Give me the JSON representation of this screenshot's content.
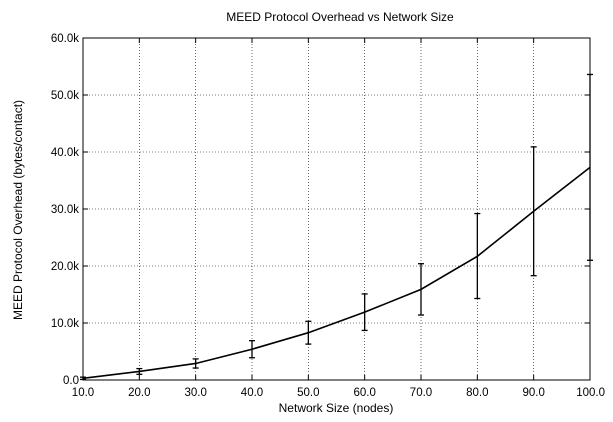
{
  "chart_data": {
    "type": "line",
    "title": "MEED Protocol Overhead vs Network Size",
    "xlabel": "Network Size (nodes)",
    "ylabel": "MEED Protocol Overhead (bytes/contact)",
    "xlim": [
      10,
      100
    ],
    "ylim": [
      0,
      60000
    ],
    "xticks": [
      10,
      20,
      30,
      40,
      50,
      60,
      70,
      80,
      90,
      100
    ],
    "xtick_labels": [
      "10.0",
      "20.0",
      "30.0",
      "40.0",
      "50.0",
      "60.0",
      "70.0",
      "80.0",
      "90.0",
      "100.0"
    ],
    "yticks": [
      0,
      10000,
      20000,
      30000,
      40000,
      50000,
      60000
    ],
    "ytick_labels": [
      "0.0",
      "10.0k",
      "20.0k",
      "30.0k",
      "40.0k",
      "50.0k",
      "60.0k"
    ],
    "grid": true,
    "legend": "none",
    "series": [
      {
        "x": [
          10,
          20,
          30,
          40,
          50,
          60,
          70,
          80,
          90,
          100
        ],
        "y": [
          300,
          1500,
          2900,
          5400,
          8300,
          11900,
          15900,
          21700,
          29600,
          37300
        ],
        "err_low": [
          100,
          1000,
          2100,
          3900,
          6300,
          8700,
          11400,
          14300,
          18300,
          21000
        ],
        "err_high": [
          500,
          2000,
          3700,
          6900,
          10300,
          15100,
          20400,
          29200,
          40900,
          53600
        ]
      }
    ]
  }
}
